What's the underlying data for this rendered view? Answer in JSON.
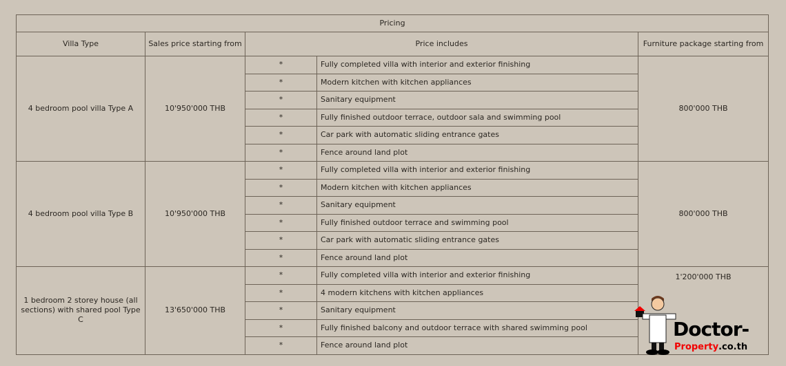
{
  "table": {
    "title": "Pricing",
    "headers": [
      "Villa Type",
      "Sales price starting from",
      "Price includes",
      "Furniture package starting from"
    ],
    "bullet": "*",
    "groups": [
      {
        "villa_type": "4 bedroom pool villa Type A",
        "sales_price": "10'950'000 THB",
        "furniture": "800'000 THB",
        "includes": [
          "Fully completed villa with interior and exterior finishing",
          "Modern kitchen with kitchen appliances",
          "Sanitary equipment",
          "Fully finished outdoor terrace, outdoor sala and swimming pool",
          "Car park with automatic sliding entrance gates",
          "Fence around land plot"
        ]
      },
      {
        "villa_type": "4 bedroom pool villa Type B",
        "sales_price": "10'950'000 THB",
        "furniture": "800'000 THB",
        "includes": [
          "Fully completed villa with interior and exterior finishing",
          "Modern kitchen with kitchen appliances",
          "Sanitary equipment",
          "Fully finished outdoor terrace and swimming pool",
          "Car park with automatic sliding entrance gates",
          "Fence around land plot"
        ]
      },
      {
        "villa_type": "1 bedroom 2 storey house (all sections) with shared pool Type C",
        "sales_price": "13'650'000 THB",
        "furniture": "1'200'000 THB",
        "includes": [
          "Fully completed villa with interior and exterior finishing",
          "4 modern kitchens with kitchen appliances",
          "Sanitary equipment",
          "Fully finished balcony and outdoor terrace with shared swimming pool",
          "Fence around land plot"
        ]
      }
    ]
  },
  "logo": {
    "text_main": "Doctor-",
    "text_red": "Property",
    "text_suffix": ".co.th"
  }
}
